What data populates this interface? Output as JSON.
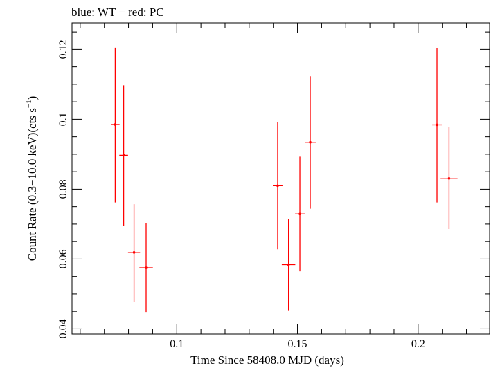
{
  "chart_data": {
    "type": "scatter",
    "title": "blue: WT − red: PC",
    "xlabel": "Time Since 58408.0 MJD (days)",
    "ylabel_main": "Count Rate (0.3−10.0 keV)(cts s",
    "ylabel_sup": "−1",
    "ylabel_close": ")",
    "xlim": [
      0.0566,
      0.2296
    ],
    "ylim": [
      0.0385,
      0.1276
    ],
    "x_ticks": [
      {
        "value": 0.1,
        "label": "0.1"
      },
      {
        "value": 0.15,
        "label": "0.15"
      },
      {
        "value": 0.2,
        "label": "0.2"
      }
    ],
    "y_ticks": [
      {
        "value": 0.04,
        "label": "0.04"
      },
      {
        "value": 0.06,
        "label": "0.06"
      },
      {
        "value": 0.08,
        "label": "0.08"
      },
      {
        "value": 0.1,
        "label": "0.1"
      },
      {
        "value": 0.12,
        "label": "0.12"
      }
    ],
    "series": [
      {
        "name": "PC",
        "color": "#ff0000",
        "points": [
          {
            "x": 0.0745,
            "xerr": 0.0018,
            "y": 0.0985,
            "ylo": 0.0762,
            "yhi": 0.1205
          },
          {
            "x": 0.078,
            "xerr": 0.0018,
            "y": 0.0897,
            "ylo": 0.0695,
            "yhi": 0.1097
          },
          {
            "x": 0.0823,
            "xerr": 0.0025,
            "y": 0.0619,
            "ylo": 0.0478,
            "yhi": 0.0757
          },
          {
            "x": 0.0873,
            "xerr": 0.0028,
            "y": 0.0575,
            "ylo": 0.0448,
            "yhi": 0.0702
          },
          {
            "x": 0.1418,
            "xerr": 0.002,
            "y": 0.081,
            "ylo": 0.0628,
            "yhi": 0.0992
          },
          {
            "x": 0.1463,
            "xerr": 0.0028,
            "y": 0.0584,
            "ylo": 0.0453,
            "yhi": 0.0715
          },
          {
            "x": 0.151,
            "xerr": 0.002,
            "y": 0.0729,
            "ylo": 0.0565,
            "yhi": 0.0893
          },
          {
            "x": 0.1553,
            "xerr": 0.0023,
            "y": 0.0934,
            "ylo": 0.0744,
            "yhi": 0.1123
          },
          {
            "x": 0.2078,
            "xerr": 0.002,
            "y": 0.0984,
            "ylo": 0.0762,
            "yhi": 0.1204
          },
          {
            "x": 0.2128,
            "xerr": 0.0035,
            "y": 0.0831,
            "ylo": 0.0686,
            "yhi": 0.0977
          }
        ]
      }
    ]
  }
}
